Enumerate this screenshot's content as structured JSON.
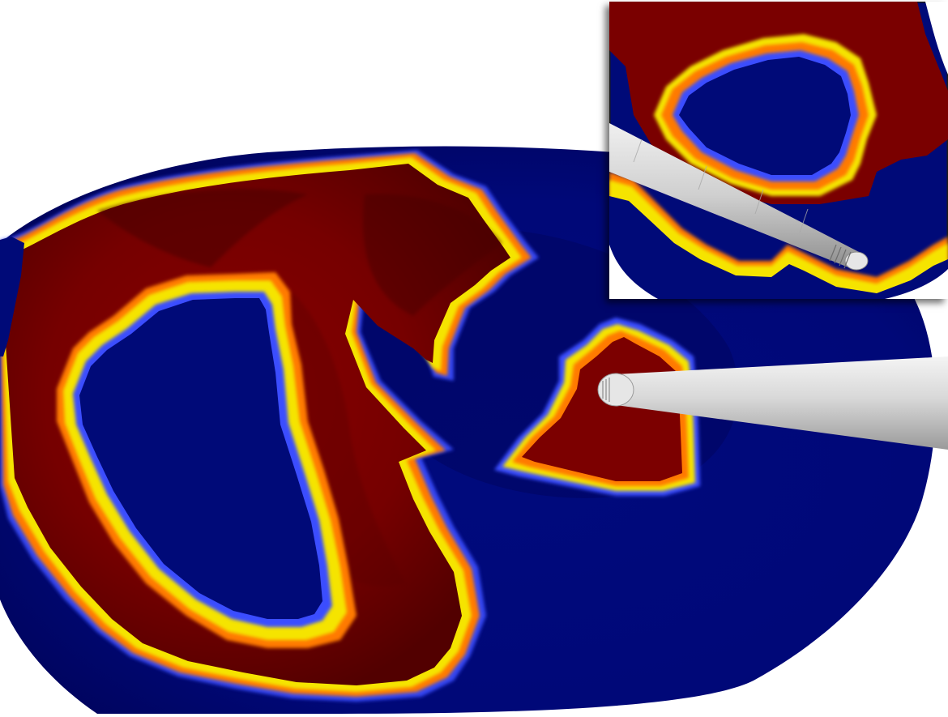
{
  "scene": {
    "subject": "3d-surface-activation-map",
    "colors": {
      "background": "#ffffff",
      "tissue_base": "#000a78",
      "tissue_deep": "#00035a",
      "scar": "#7a0000",
      "scar_dark": "#4a0000",
      "border_yellow": "#f5e400",
      "border_orange": "#ff7a00",
      "border_blue": "#3a4dff",
      "catheter": "#d9d9d9"
    },
    "icons": [
      "catheter-icon",
      "catheter-tip-electrodes-icon"
    ]
  },
  "inset": {
    "frame_border": "#1a1a1a"
  }
}
